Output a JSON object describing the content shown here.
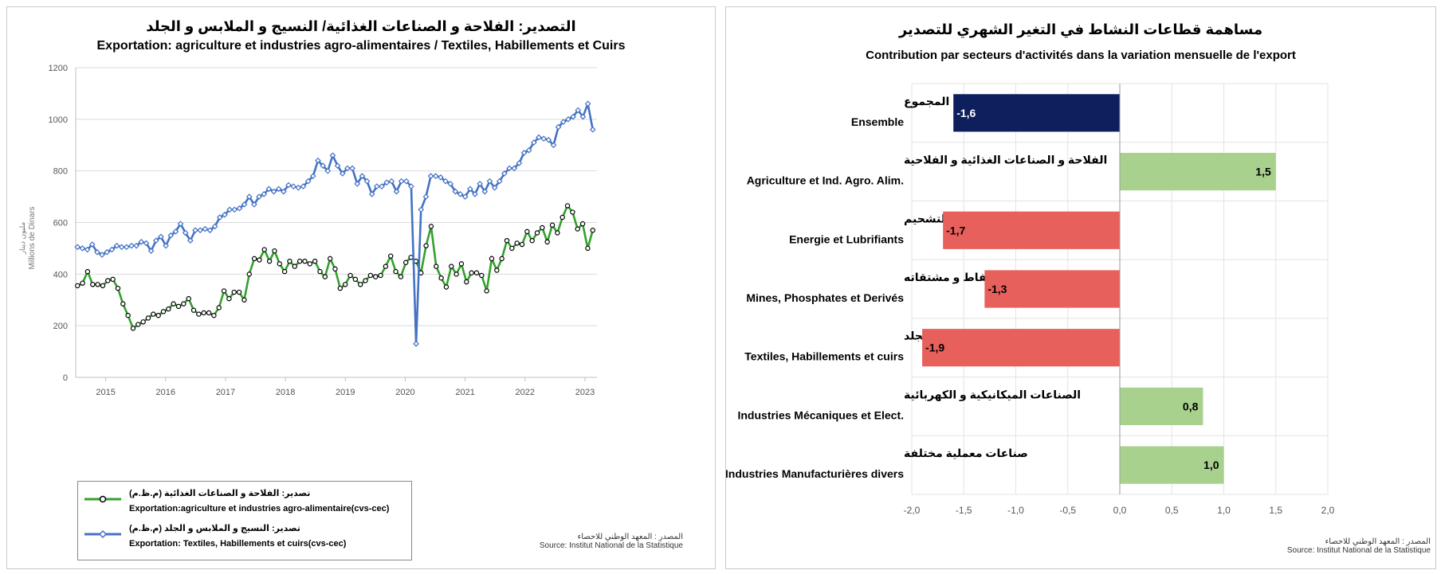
{
  "left_panel": {
    "title_ar": "التصدير: الفلاحة و الصناعات الغذائية/ النسيج و الملابس و الجلد",
    "title_fr": "Exportation: agriculture et industries agro-alimentaires / Textiles, Habillements et Cuirs",
    "ylabel_ar": "مليون دينار",
    "ylabel_fr": "Millions de Dinars",
    "legend": [
      {
        "ar": "تصدير: الفلاحة و الصناعات الغذائية (م.ظ.م)",
        "fr": "Exportation:agriculture et industries agro-alimentaire(cvs-cec)",
        "color": "#33a02c"
      },
      {
        "ar": "تصدير: النسيج و الملابس و الجلد (م.ظ.م)",
        "fr": "Exportation: Textiles, Habillements et cuirs(cvs-cec)",
        "color": "#4472c4"
      }
    ],
    "source_ar": "المصدر : المعهد الوطني للاحصاء",
    "source_fr": "Source: Institut National de la Statistique"
  },
  "right_panel": {
    "title_ar": "مساهمة قطاعات النشاط في التغير الشهري للتصدير",
    "title_fr": "Contribution par secteurs d'activités dans la variation mensuelle de l'export",
    "source_ar": "المصدر : المعهد الوطني للاحصاء",
    "source_fr": "Source: Institut National de la Statistique"
  },
  "chart_data": [
    {
      "type": "line",
      "title": "Exportation: agriculture et industries agro-alimentaires / Textiles, Habillements et Cuirs",
      "ylabel": "Millions de Dinars",
      "ylim": [
        0,
        1200
      ],
      "yticks": [
        0,
        200,
        400,
        600,
        800,
        1000,
        1200
      ],
      "xticks": [
        "2015",
        "2016",
        "2017",
        "2018",
        "2019",
        "2020",
        "2021",
        "2022",
        "2023"
      ],
      "grid": "horizontal",
      "x_start_year": 2014.5,
      "x_step_years": 0.0833,
      "series": [
        {
          "name": "Exportation:agriculture et industries agro-alimentaire(cvs-cec)",
          "color": "#33a02c",
          "values": [
            355,
            365,
            410,
            360,
            360,
            355,
            375,
            380,
            345,
            285,
            240,
            190,
            205,
            215,
            230,
            245,
            240,
            255,
            265,
            285,
            275,
            285,
            305,
            260,
            245,
            250,
            250,
            240,
            270,
            335,
            305,
            330,
            330,
            300,
            400,
            460,
            455,
            495,
            450,
            490,
            440,
            410,
            450,
            430,
            450,
            450,
            440,
            450,
            410,
            390,
            460,
            420,
            345,
            360,
            395,
            380,
            360,
            375,
            395,
            390,
            395,
            430,
            470,
            410,
            390,
            445,
            465,
            450,
            405,
            510,
            585,
            430,
            385,
            350,
            430,
            400,
            440,
            370,
            405,
            405,
            395,
            335,
            460,
            415,
            460,
            530,
            500,
            520,
            515,
            565,
            530,
            560,
            580,
            525,
            590,
            560,
            620,
            665,
            640,
            575,
            595,
            500,
            570
          ]
        },
        {
          "name": "Exportation: Textiles, Habillements et cuirs(cvs-cec)",
          "color": "#4472c4",
          "values": [
            505,
            500,
            495,
            515,
            485,
            475,
            485,
            495,
            510,
            505,
            505,
            510,
            510,
            525,
            520,
            490,
            530,
            545,
            510,
            550,
            565,
            595,
            560,
            530,
            570,
            570,
            575,
            570,
            585,
            620,
            630,
            650,
            650,
            655,
            670,
            700,
            670,
            700,
            710,
            730,
            720,
            730,
            720,
            745,
            740,
            735,
            740,
            760,
            780,
            840,
            820,
            800,
            860,
            820,
            790,
            810,
            810,
            750,
            780,
            760,
            710,
            740,
            740,
            755,
            760,
            720,
            760,
            760,
            740,
            130,
            650,
            700,
            780,
            780,
            775,
            760,
            750,
            720,
            710,
            700,
            730,
            710,
            750,
            720,
            760,
            735,
            760,
            790,
            810,
            810,
            830,
            870,
            880,
            910,
            930,
            925,
            920,
            900,
            970,
            990,
            1000,
            1010,
            1035,
            1010,
            1060,
            960
          ]
        }
      ]
    },
    {
      "type": "bar",
      "orientation": "horizontal",
      "title": "Contribution par secteurs d'activités dans la variation mensuelle de l'export",
      "xlim": [
        -2.0,
        2.0
      ],
      "xticks": [
        "-2,0",
        "-1,5",
        "-1,0",
        "-0,5",
        "0,0",
        "0,5",
        "1,0",
        "1,5",
        "2,0"
      ],
      "categories": [
        {
          "ar": "المجموع",
          "fr": "Ensemble"
        },
        {
          "ar": "الفلاحة و الصناعات الغذائية و الفلاحية",
          "fr": "Agriculture et Ind. Agro. Alim."
        },
        {
          "ar": "الطاقة و زيوت التشحيم",
          "fr": "Energie et Lubrifiants"
        },
        {
          "ar": "المناجم ، الفسفاط و مشتقاته",
          "fr": "Mines, Phosphates et Derivés"
        },
        {
          "ar": "النسيج و الملابس و الجلد",
          "fr": "Textiles, Habillements et cuirs"
        },
        {
          "ar": "الصناعات الميكانيكية و الكهربائية",
          "fr": "Industries Mécaniques et Elect."
        },
        {
          "ar": "صناعات معملية مختلفة",
          "fr": "Industries Manufacturières divers"
        }
      ],
      "values": [
        -1.6,
        1.5,
        -1.7,
        -1.3,
        -1.9,
        0.8,
        1.0
      ],
      "value_labels": [
        "-1,6",
        "1,5",
        "-1,7",
        "-1,3",
        "-1,9",
        "0,8",
        "1,0"
      ],
      "colors": [
        "#0d1f5c",
        "#a9d18e",
        "#e8605c",
        "#e8605c",
        "#e8605c",
        "#a9d18e",
        "#a9d18e"
      ]
    }
  ]
}
